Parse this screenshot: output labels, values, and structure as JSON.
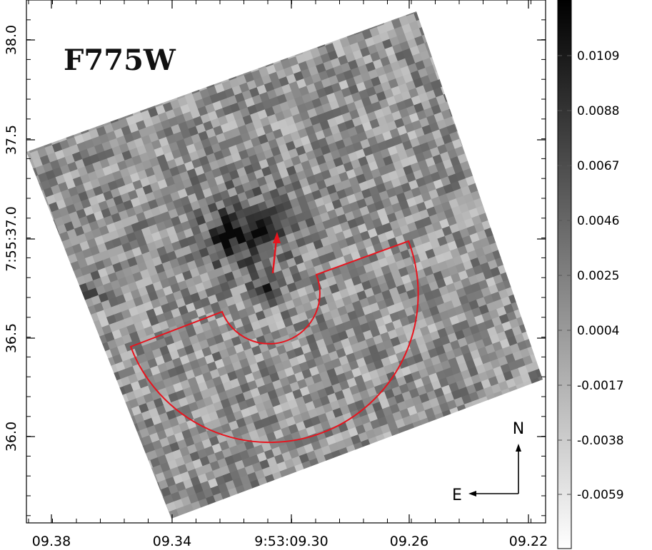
{
  "chart_data": {
    "type": "heatmap",
    "panel_label": "F775W",
    "x_ticks": [
      {
        "label": "09.38",
        "value": 9.38
      },
      {
        "label": "09.34",
        "value": 9.34
      },
      {
        "label": "9:53:09.30",
        "value": 9.3
      },
      {
        "label": "09.26",
        "value": 9.26
      },
      {
        "label": "09.22",
        "value": 9.22
      }
    ],
    "y_ticks": [
      {
        "label": "38.0",
        "value": 38.0
      },
      {
        "label": "37.5",
        "value": 37.5
      },
      {
        "label": "7:55:37.0",
        "value": 37.0
      },
      {
        "label": "36.5",
        "value": 36.5
      },
      {
        "label": "36.0",
        "value": 36.0
      }
    ],
    "colorbar": {
      "ticks": [
        "0.0109",
        "0.0088",
        "0.0067",
        "0.0046",
        "0.0025",
        "0.0004",
        "-0.0017",
        "-0.0038",
        "-0.0059"
      ],
      "colormap": "gray_r"
    },
    "compass": {
      "north": "N",
      "east": "E"
    },
    "overlay_color": "#e8141e"
  }
}
